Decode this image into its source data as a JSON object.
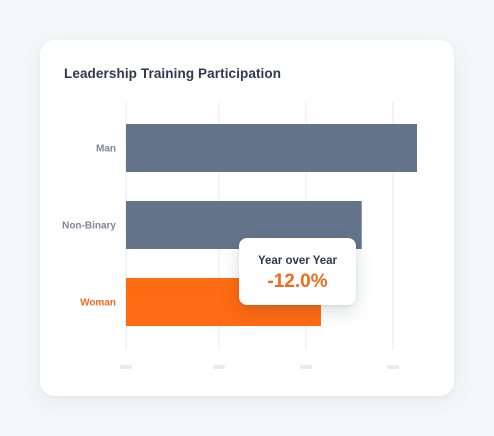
{
  "chart_data": {
    "type": "bar",
    "orientation": "horizontal",
    "title": "Leadership Training Participation",
    "categories": [
      "Man",
      "Non-Binary",
      "Woman"
    ],
    "values": [
      100,
      81,
      67
    ],
    "xlim": [
      0,
      100
    ],
    "grid": true,
    "highlight_category": "Woman",
    "colors": {
      "bar": "#64748b",
      "highlight": "#fe6b12",
      "label": "#7d8795",
      "highlight_label": "#f26b1d",
      "grid": "#e7eaee"
    }
  },
  "tooltip": {
    "label": "Year over Year",
    "value": "-12.0%"
  }
}
